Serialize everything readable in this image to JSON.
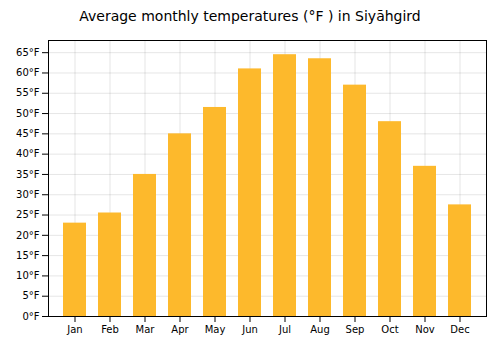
{
  "chart_data": {
    "type": "bar",
    "title": "Average monthly temperatures (°F ) in Siyāhgird",
    "categories": [
      "Jan",
      "Feb",
      "Mar",
      "Apr",
      "May",
      "Jun",
      "Jul",
      "Aug",
      "Sep",
      "Oct",
      "Nov",
      "Dec"
    ],
    "values": [
      23,
      25.5,
      35,
      45,
      51.5,
      61,
      64.5,
      63.5,
      57,
      48,
      37,
      27.5
    ],
    "color": "#FDB92C",
    "ylim": [
      0,
      68
    ],
    "yticks": [
      {
        "value": 0,
        "label": "0°F"
      },
      {
        "value": 5,
        "label": "5°F"
      },
      {
        "value": 10,
        "label": "10°F"
      },
      {
        "value": 15,
        "label": "15°F"
      },
      {
        "value": 20,
        "label": "20°F"
      },
      {
        "value": 25,
        "label": "25°F"
      },
      {
        "value": 30,
        "label": "30°F"
      },
      {
        "value": 35,
        "label": "35°F"
      },
      {
        "value": 40,
        "label": "40°F"
      },
      {
        "value": 45,
        "label": "45°F"
      },
      {
        "value": 50,
        "label": "50°F"
      },
      {
        "value": 55,
        "label": "55°F"
      },
      {
        "value": 60,
        "label": "60°F"
      },
      {
        "value": 65,
        "label": "65°F"
      }
    ],
    "grid": true
  }
}
